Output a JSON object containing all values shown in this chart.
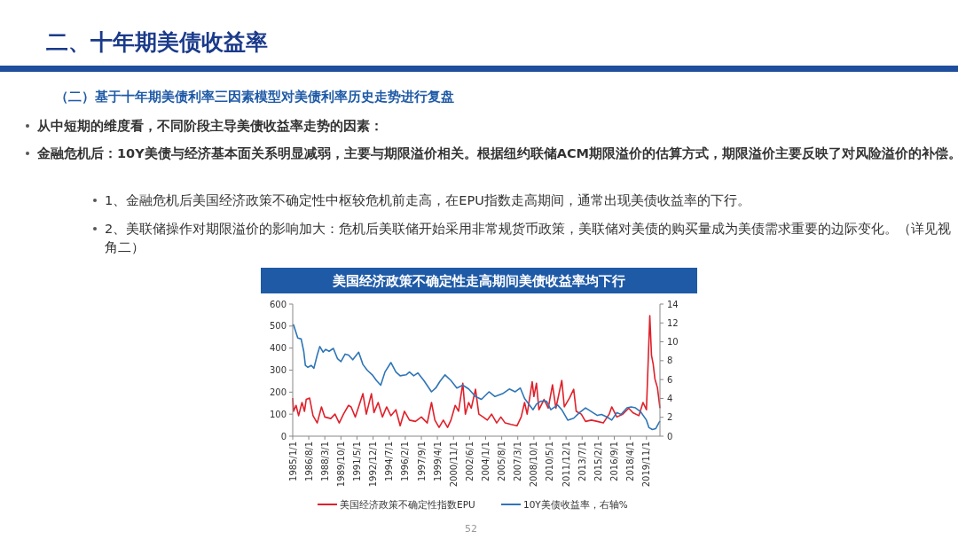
{
  "chart_data": {
    "type": "line",
    "title": "美国经济政策不确定性走高期间美债收益率均下行",
    "annotations": [
      "二、十年期美债收益率",
      "（二）基于十年期美债利率三因素模型对美债利率历史走势进行复盘",
      "从中短期的维度看，不同阶段主导美债收益率走势的因素：",
      "金融危机后：10Y美债与经济基本面关系明显减弱，主要与期限溢价相关。根据纽约联储ACM期限溢价的估算方式，期限溢价主要反映了对风险溢价的补偿。",
      "1、金融危机后美国经济政策不确定性中枢较危机前走高，在EPU指数走高期间，通常出现美债收益率的下行。",
      "2、美联储操作对期限溢价的影响加大：危机后美联储开始采用非常规货币政策，美联储对美债的购买量成为美债需求重要的边际变化。（详见视角二）",
      "52"
    ],
    "xlim": [
      "1985-01",
      "2021-03"
    ],
    "xticks": [
      {
        "value": "1985-01",
        "label": "1985/1/1"
      },
      {
        "value": "1986-08",
        "label": "1986/8/1"
      },
      {
        "value": "1988-03",
        "label": "1988/3/1"
      },
      {
        "value": "1989-10",
        "label": "1989/10/1"
      },
      {
        "value": "1991-05",
        "label": "1991/5/1"
      },
      {
        "value": "1992-12",
        "label": "1992/12/1"
      },
      {
        "value": "1994-07",
        "label": "1994/7/1"
      },
      {
        "value": "1996-02",
        "label": "1996/2/1"
      },
      {
        "value": "1997-09",
        "label": "1997/9/1"
      },
      {
        "value": "1999-04",
        "label": "1999/4/1"
      },
      {
        "value": "2000-11",
        "label": "2000/11/1"
      },
      {
        "value": "2002-06",
        "label": "2002/6/1"
      },
      {
        "value": "2004-01",
        "label": "2004/1/1"
      },
      {
        "value": "2005-08",
        "label": "2005/8/1"
      },
      {
        "value": "2007-03",
        "label": "2007/3/1"
      },
      {
        "value": "2008-10",
        "label": "2008/10/1"
      },
      {
        "value": "2010-05",
        "label": "2010/5/1"
      },
      {
        "value": "2011-12",
        "label": "2011/12/1"
      },
      {
        "value": "2013-07",
        "label": "2013/7/1"
      },
      {
        "value": "2015-02",
        "label": "2015/2/1"
      },
      {
        "value": "2016-09",
        "label": "2016/9/1"
      },
      {
        "value": "2018-04",
        "label": "2018/4/1"
      },
      {
        "value": "2019-11",
        "label": "2019/11/1"
      }
    ],
    "ylim": [
      0,
      600
    ],
    "yticks": [
      0,
      100,
      200,
      300,
      400,
      500,
      600
    ],
    "y2lim": [
      0,
      14
    ],
    "y2ticks": [
      0,
      2,
      4,
      6,
      8,
      10,
      12,
      14
    ],
    "grid": false,
    "legend": "bottom",
    "series": [
      {
        "name": "美国经济政策不确定性指数EPU",
        "color": "#e0202a",
        "x": [
          "1985-01",
          "1985-02",
          "1985-05",
          "1985-08",
          "1985-12",
          "1986-03",
          "1986-05",
          "1986-09",
          "1987-01",
          "1987-06",
          "1987-11",
          "1988-03",
          "1988-10",
          "1989-03",
          "1989-08",
          "1990-01",
          "1990-07",
          "1990-10",
          "1991-03",
          "1991-12",
          "1992-04",
          "1992-10",
          "1993-01",
          "1993-06",
          "1993-11",
          "1994-04",
          "1994-09",
          "1995-03",
          "1995-08",
          "1996-01",
          "1996-07",
          "1997-02",
          "1997-09",
          "1998-04",
          "1998-09",
          "1999-01",
          "1999-06",
          "1999-11",
          "2000-04",
          "2000-08",
          "2001-01",
          "2001-05",
          "2001-10",
          "2002-01",
          "2002-05",
          "2002-08",
          "2003-01",
          "2003-05",
          "2003-10",
          "2004-03",
          "2004-08",
          "2005-02",
          "2005-07",
          "2005-12",
          "2006-07",
          "2007-02",
          "2007-07",
          "2007-11",
          "2008-02",
          "2008-08",
          "2008-10",
          "2009-01",
          "2009-04",
          "2009-10",
          "2010-03",
          "2010-08",
          "2010-12",
          "2011-07",
          "2011-10",
          "2012-04",
          "2012-09",
          "2012-12",
          "2013-06",
          "2013-11",
          "2014-06",
          "2015-01",
          "2015-08",
          "2016-03",
          "2016-06",
          "2016-12",
          "2017-07",
          "2018-02",
          "2018-07",
          "2019-02",
          "2019-07",
          "2019-11",
          "2020-03",
          "2020-05",
          "2020-07",
          "2020-09",
          "2020-12",
          "2021-03"
        ],
        "values": [
          173,
          113,
          140,
          93,
          153,
          113,
          167,
          173,
          93,
          60,
          133,
          87,
          80,
          100,
          60,
          100,
          140,
          133,
          87,
          193,
          100,
          193,
          107,
          153,
          87,
          133,
          93,
          120,
          47,
          113,
          73,
          67,
          87,
          60,
          153,
          73,
          40,
          73,
          40,
          73,
          140,
          113,
          240,
          100,
          153,
          127,
          213,
          100,
          87,
          73,
          100,
          60,
          87,
          60,
          53,
          47,
          87,
          153,
          100,
          247,
          180,
          240,
          120,
          167,
          127,
          233,
          127,
          253,
          133,
          173,
          213,
          113,
          100,
          67,
          73,
          67,
          60,
          100,
          133,
          87,
          100,
          127,
          107,
          93,
          153,
          120,
          547,
          367,
          327,
          260,
          220,
          127
        ]
      },
      {
        "name": "10Y美债收益率，右轴%",
        "color": "#2e75b6",
        "axis": "y2",
        "x": [
          "1985-01",
          "1985-02",
          "1985-07",
          "1985-11",
          "1986-02",
          "1986-04",
          "1986-07",
          "1986-11",
          "1987-02",
          "1987-06",
          "1987-09",
          "1988-01",
          "1988-04",
          "1988-08",
          "1989-01",
          "1989-06",
          "1989-10",
          "1990-03",
          "1990-07",
          "1990-12",
          "1991-07",
          "1991-12",
          "1992-05",
          "1992-11",
          "1993-04",
          "1993-09",
          "1994-02",
          "1994-09",
          "1995-03",
          "1995-08",
          "1996-03",
          "1996-07",
          "1996-12",
          "1997-05",
          "1997-12",
          "1998-09",
          "1999-02",
          "1999-07",
          "2000-01",
          "2000-08",
          "2001-03",
          "2001-10",
          "2002-05",
          "2003-01",
          "2003-08",
          "2004-05",
          "2004-12",
          "2005-09",
          "2006-05",
          "2006-12",
          "2007-06",
          "2007-11",
          "2008-09",
          "2009-01",
          "2009-06",
          "2010-01",
          "2010-06",
          "2011-02",
          "2011-07",
          "2012-02",
          "2012-09",
          "2013-04",
          "2013-11",
          "2014-06",
          "2015-01",
          "2015-06",
          "2016-01",
          "2016-06",
          "2016-12",
          "2017-05",
          "2017-12",
          "2018-05",
          "2018-10",
          "2019-04",
          "2019-11",
          "2020-02",
          "2020-06",
          "2020-10",
          "2021-03"
        ],
        "values": [
          11.7,
          11.8,
          10.4,
          10.3,
          9.0,
          7.5,
          7.3,
          7.5,
          7.2,
          8.6,
          9.5,
          8.9,
          9.2,
          9.0,
          9.3,
          8.2,
          7.9,
          8.7,
          8.6,
          8.1,
          8.9,
          7.6,
          7.0,
          6.5,
          5.9,
          5.4,
          6.8,
          7.8,
          6.8,
          6.4,
          6.5,
          6.8,
          6.4,
          6.7,
          5.9,
          4.7,
          5.1,
          5.8,
          6.5,
          5.9,
          5.1,
          5.4,
          5.0,
          4.2,
          3.9,
          4.7,
          4.2,
          4.5,
          5.0,
          4.7,
          5.1,
          4.0,
          2.8,
          3.4,
          3.7,
          3.7,
          2.8,
          3.3,
          2.8,
          1.7,
          1.9,
          2.5,
          3.0,
          2.6,
          2.2,
          2.3,
          2.0,
          1.7,
          2.5,
          2.3,
          3.0,
          3.1,
          3.0,
          2.6,
          1.7,
          0.9,
          0.7,
          0.8,
          1.6
        ]
      }
    ]
  }
}
